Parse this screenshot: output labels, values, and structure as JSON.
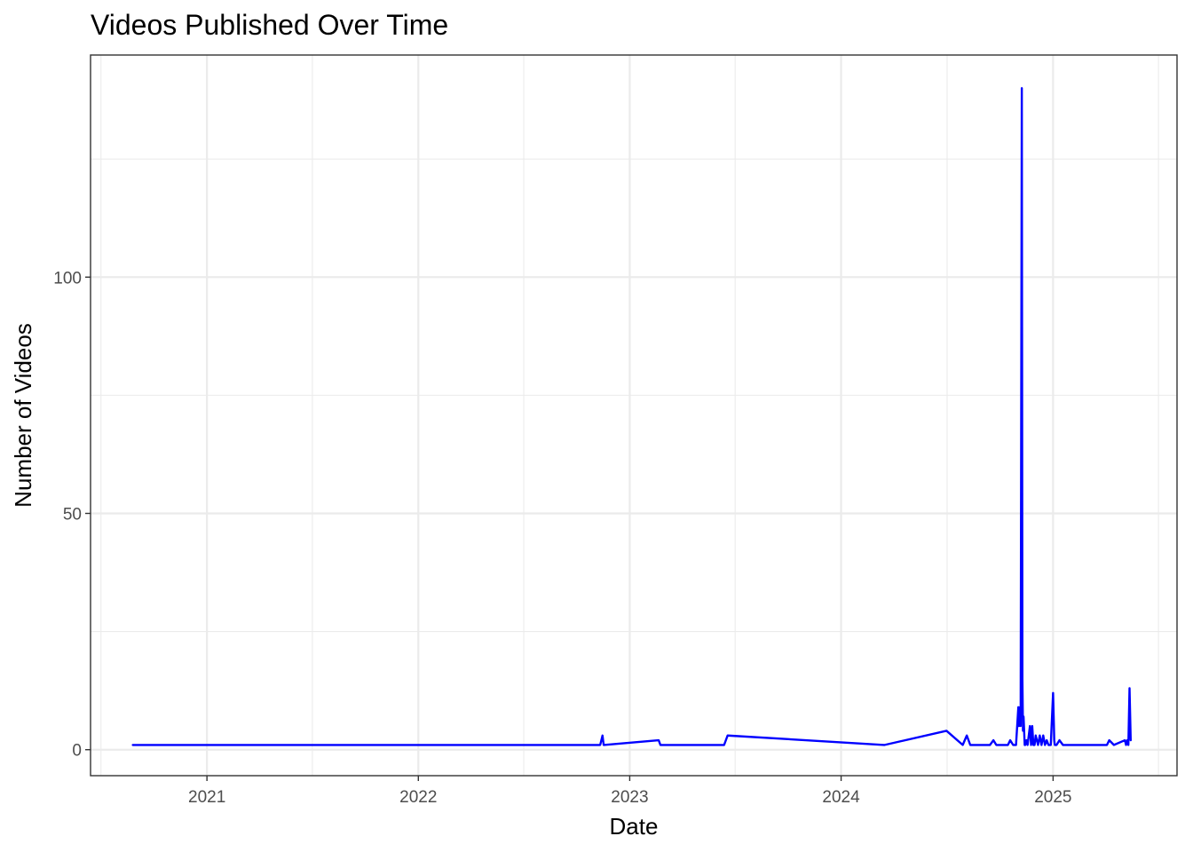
{
  "chart_data": {
    "type": "line",
    "title": "Videos Published Over Time",
    "xlabel": "Date",
    "ylabel": "Number of Videos",
    "x_axis_type": "date",
    "xlim": [
      "2020-06-14",
      "2025-08-03"
    ],
    "ylim": [
      -5.5,
      147
    ],
    "x_ticks": [
      {
        "date": "2021-01-01",
        "label": "2021"
      },
      {
        "date": "2022-01-01",
        "label": "2022"
      },
      {
        "date": "2023-01-01",
        "label": "2023"
      },
      {
        "date": "2024-01-01",
        "label": "2024"
      },
      {
        "date": "2025-01-01",
        "label": "2025"
      }
    ],
    "x_minor_ticks": [
      "2020-07-02",
      "2021-07-02",
      "2022-07-02",
      "2023-07-02",
      "2024-07-02",
      "2025-07-02"
    ],
    "y_ticks": [
      0,
      50,
      100
    ],
    "y_minor_ticks": [
      25,
      75,
      125
    ],
    "grid": true,
    "legend": "none",
    "line_color": "#0000ff",
    "series": [
      {
        "x": [
          "2020-08-26",
          "2022-11-11",
          "2022-11-15",
          "2022-11-17",
          "2023-02-20",
          "2023-02-23",
          "2023-06-13",
          "2023-06-19",
          "2024-03-16",
          "2024-07-01",
          "2024-07-29",
          "2024-08-05",
          "2024-08-11",
          "2024-09-14",
          "2024-09-20",
          "2024-09-25",
          "2024-10-15",
          "2024-10-19",
          "2024-10-24",
          "2024-10-29",
          "2024-11-02",
          "2024-11-03",
          "2024-11-05",
          "2024-11-06",
          "2024-11-08",
          "2024-11-09",
          "2024-11-10",
          "2024-11-11",
          "2024-11-13",
          "2024-11-14",
          "2024-11-16",
          "2024-11-18",
          "2024-11-22",
          "2024-11-24",
          "2024-11-26",
          "2024-11-28",
          "2024-11-30",
          "2024-12-02",
          "2024-12-06",
          "2024-12-09",
          "2024-12-12",
          "2024-12-15",
          "2024-12-18",
          "2024-12-21",
          "2024-12-24",
          "2024-12-28",
          "2025-01-01",
          "2025-01-03",
          "2025-01-04",
          "2025-01-07",
          "2025-01-12",
          "2025-01-18",
          "2025-02-21",
          "2025-04-04",
          "2025-04-08",
          "2025-04-16",
          "2025-05-05",
          "2025-05-07",
          "2025-05-09",
          "2025-05-11",
          "2025-05-13",
          "2025-05-15"
        ],
        "values": [
          1,
          1,
          3,
          1,
          2,
          1,
          1,
          3,
          1,
          4,
          1,
          3,
          1,
          1,
          2,
          1,
          1,
          2,
          1,
          1,
          9,
          5,
          9,
          5,
          140,
          15,
          4,
          7,
          1,
          1,
          2,
          1,
          5,
          1,
          5,
          1,
          1,
          3,
          1,
          3,
          1,
          3,
          1,
          2,
          1,
          1,
          12,
          2,
          1,
          1,
          2,
          1,
          1,
          1,
          2,
          1,
          2,
          1,
          2,
          1,
          13,
          2
        ]
      }
    ]
  }
}
